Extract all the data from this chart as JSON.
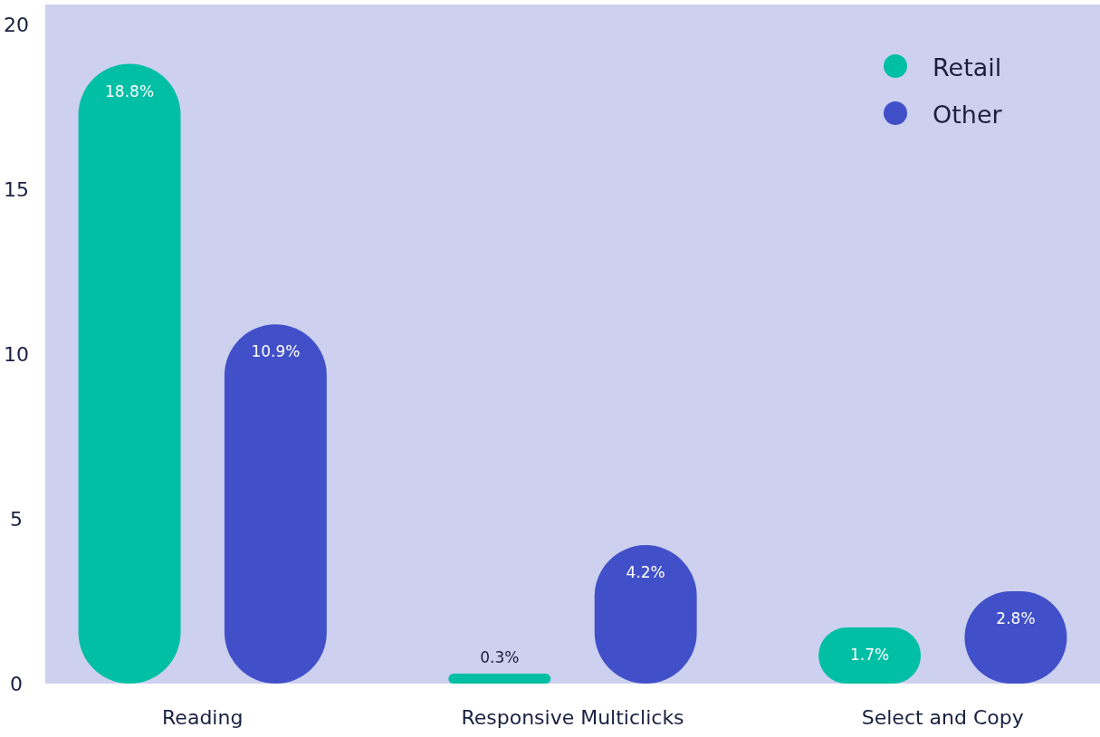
{
  "chart_data": {
    "type": "bar",
    "categories": [
      "Reading",
      "Responsive Multiclicks",
      "Select and Copy"
    ],
    "series": [
      {
        "name": "Retail",
        "color": "#00bfa5",
        "values": [
          18.8,
          0.3,
          1.7
        ]
      },
      {
        "name": "Other",
        "color": "#4150c8",
        "values": [
          10.9,
          4.2,
          2.8
        ]
      }
    ],
    "value_labels": [
      [
        "18.8%",
        "0.3%",
        "1.7%"
      ],
      [
        "10.9%",
        "4.2%",
        "2.8%"
      ]
    ],
    "ylim": [
      0,
      20.6
    ],
    "yticks": [
      0,
      5,
      10,
      15,
      20
    ],
    "grid": false,
    "legend": "top right"
  }
}
